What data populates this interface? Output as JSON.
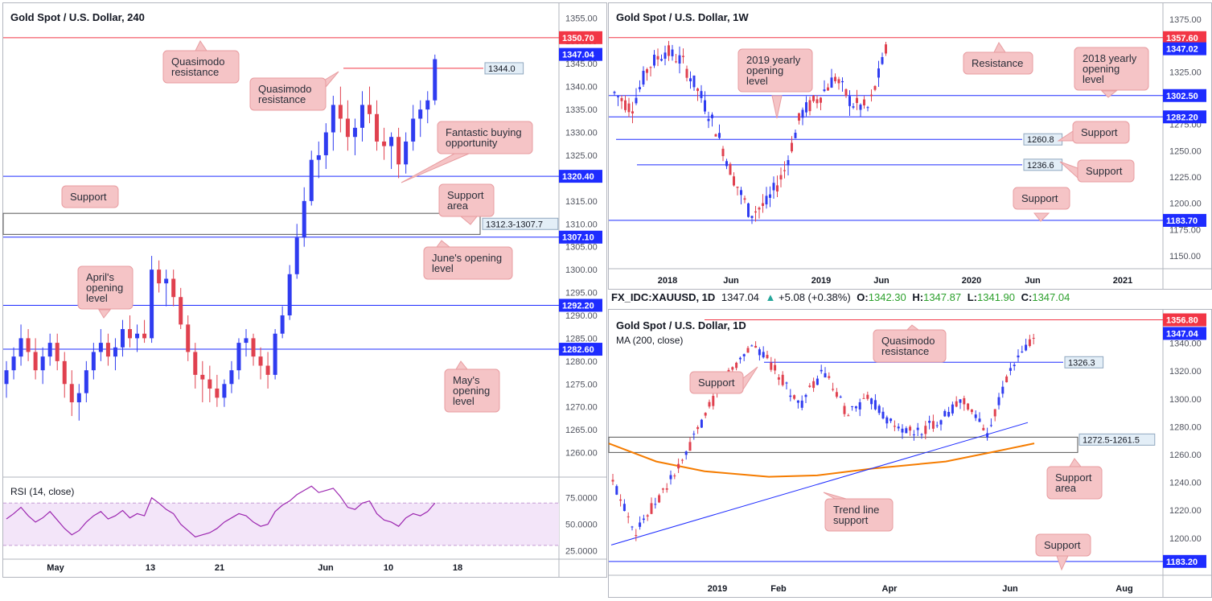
{
  "chart_data": [
    {
      "id": "h4",
      "type": "candlestick",
      "title": "Gold Spot / U.S. Dollar, 240",
      "ylim": [
        1255,
        1357
      ],
      "yticks": [
        1355,
        1350,
        1345,
        1340,
        1335,
        1330,
        1325,
        1320,
        1315,
        1310,
        1305,
        1300,
        1295,
        1290,
        1285,
        1280,
        1275,
        1270,
        1265,
        1260
      ],
      "xticks": [
        "May",
        "13",
        "21",
        "Jun",
        "10",
        "18"
      ],
      "ohlc": [
        [
          1275,
          1280,
          1272,
          1278
        ],
        [
          1278,
          1283,
          1276,
          1281
        ],
        [
          1281,
          1288,
          1279,
          1285
        ],
        [
          1285,
          1287,
          1280,
          1282
        ],
        [
          1282,
          1285,
          1276,
          1278
        ],
        [
          1278,
          1283,
          1275,
          1281
        ],
        [
          1281,
          1286,
          1279,
          1284
        ],
        [
          1284,
          1286,
          1278,
          1280
        ],
        [
          1280,
          1282,
          1272,
          1275
        ],
        [
          1275,
          1278,
          1268,
          1271
        ],
        [
          1271,
          1275,
          1267,
          1273
        ],
        [
          1273,
          1280,
          1271,
          1278
        ],
        [
          1278,
          1284,
          1276,
          1282
        ],
        [
          1282,
          1287,
          1280,
          1284
        ],
        [
          1284,
          1286,
          1279,
          1281
        ],
        [
          1281,
          1285,
          1278,
          1283
        ],
        [
          1283,
          1289,
          1281,
          1287
        ],
        [
          1287,
          1290,
          1283,
          1285
        ],
        [
          1285,
          1288,
          1282,
          1286
        ],
        [
          1286,
          1289,
          1284,
          1285
        ],
        [
          1285,
          1303,
          1284,
          1300
        ],
        [
          1300,
          1302,
          1295,
          1297
        ],
        [
          1297,
          1300,
          1292,
          1298
        ],
        [
          1298,
          1300,
          1292,
          1294
        ],
        [
          1294,
          1296,
          1287,
          1288
        ],
        [
          1288,
          1290,
          1280,
          1282
        ],
        [
          1282,
          1284,
          1274,
          1277
        ],
        [
          1277,
          1280,
          1271,
          1276
        ],
        [
          1276,
          1279,
          1271,
          1274
        ],
        [
          1274,
          1277,
          1270,
          1272
        ],
        [
          1272,
          1276,
          1270,
          1275
        ],
        [
          1275,
          1280,
          1273,
          1278
        ],
        [
          1278,
          1285,
          1276,
          1284
        ],
        [
          1284,
          1287,
          1281,
          1285
        ],
        [
          1285,
          1286,
          1279,
          1281
        ],
        [
          1281,
          1283,
          1276,
          1279
        ],
        [
          1279,
          1282,
          1274,
          1277
        ],
        [
          1277,
          1287,
          1276,
          1286
        ],
        [
          1286,
          1292,
          1285,
          1290
        ],
        [
          1290,
          1301,
          1289,
          1299
        ],
        [
          1299,
          1310,
          1298,
          1307
        ],
        [
          1307,
          1318,
          1305,
          1315
        ],
        [
          1315,
          1326,
          1314,
          1324
        ],
        [
          1324,
          1328,
          1320,
          1325
        ],
        [
          1325,
          1332,
          1322,
          1330
        ],
        [
          1330,
          1338,
          1326,
          1336
        ],
        [
          1336,
          1340,
          1330,
          1333
        ],
        [
          1333,
          1337,
          1326,
          1329
        ],
        [
          1329,
          1333,
          1325,
          1331
        ],
        [
          1331,
          1339,
          1328,
          1336
        ],
        [
          1336,
          1340,
          1332,
          1334
        ],
        [
          1334,
          1337,
          1326,
          1328
        ],
        [
          1328,
          1331,
          1324,
          1327
        ],
        [
          1327,
          1330,
          1322,
          1329
        ],
        [
          1329,
          1331,
          1320,
          1323
        ],
        [
          1323,
          1330,
          1321,
          1328
        ],
        [
          1328,
          1336,
          1326,
          1333
        ],
        [
          1333,
          1337,
          1329,
          1335
        ],
        [
          1335,
          1339,
          1332,
          1337
        ],
        [
          1337,
          1347,
          1336,
          1346
        ]
      ],
      "rsi": {
        "label": "RSI (14, close)",
        "ylim": [
          20,
          90
        ],
        "yticks": [
          75,
          50,
          25
        ],
        "ytick_labels": [
          "75.0000",
          "50.0000",
          "25.0000"
        ],
        "band": [
          70,
          30
        ],
        "values": [
          55,
          60,
          66,
          58,
          52,
          56,
          62,
          54,
          46,
          40,
          44,
          52,
          58,
          62,
          55,
          58,
          63,
          56,
          60,
          58,
          75,
          70,
          64,
          60,
          50,
          44,
          38,
          40,
          42,
          46,
          52,
          56,
          60,
          58,
          52,
          48,
          50,
          62,
          68,
          72,
          78,
          82,
          86,
          80,
          82,
          84,
          76,
          66,
          64,
          70,
          72,
          60,
          54,
          52,
          48,
          56,
          60,
          58,
          62,
          70
        ],
        "y_label_value": "75.0000"
      },
      "lines": [
        {
          "value": 1350.7,
          "label": "1350.70",
          "color": "#f23645"
        },
        {
          "value": 1347.04,
          "label": "1347.04",
          "color": "#1e2cff",
          "is_price": true
        },
        {
          "value": 1320.4,
          "label": "1320.40",
          "color": "#1e2cff"
        },
        {
          "value": 1307.1,
          "label": "1307.10",
          "color": "#1e2cff"
        },
        {
          "value": 1292.2,
          "label": "1292.20",
          "color": "#1e2cff"
        },
        {
          "value": 1282.6,
          "label": "1282.60",
          "color": "#1e2cff"
        }
      ],
      "segment_label": "1344.0",
      "zone_label": "1312.3-1307.7",
      "annotations": [
        "Quasimodo resistance",
        "Quasimodo resistance",
        "Fantastic buying opportunity",
        "Support",
        "Support area",
        "June's opening level",
        "April's opening level",
        "May's opening level"
      ]
    },
    {
      "id": "w1",
      "type": "candlestick",
      "title": "Gold Spot / U.S. Dollar, 1W",
      "ylim": [
        1140,
        1385
      ],
      "yticks": [
        1375,
        1350,
        1325,
        1300,
        1275,
        1250,
        1225,
        1200,
        1175,
        1150
      ],
      "xticks": [
        "2018",
        "Jun",
        "2019",
        "Jun",
        "2020",
        "Jun",
        "2021"
      ],
      "lines": [
        {
          "value": 1357.6,
          "label": "1357.60",
          "color": "#f23645"
        },
        {
          "value": 1347.02,
          "label": "1347.02",
          "color": "#1e2cff",
          "is_price": true
        },
        {
          "value": 1302.5,
          "label": "1302.50",
          "color": "#1e2cff"
        },
        {
          "value": 1282.2,
          "label": "1282.20",
          "color": "#1e2cff"
        },
        {
          "value": 1260.8,
          "label": "1260.8",
          "color": "#1e2cff",
          "segment": true
        },
        {
          "value": 1236.6,
          "label": "1236.6",
          "color": "#1e2cff",
          "segment": true
        },
        {
          "value": 1183.7,
          "label": "1183.70",
          "color": "#1e2cff"
        }
      ],
      "annotations": [
        "2019 yearly opening level",
        "Resistance",
        "2018 yearly opening level",
        "Support",
        "Support",
        "Support"
      ]
    },
    {
      "id": "d1",
      "type": "candlestick",
      "title": "Gold Spot / U.S. Dollar, 1D",
      "subtitle": "MA (200, close)",
      "ylim": [
        1175,
        1360
      ],
      "yticks": [
        1340,
        1320,
        1300,
        1280,
        1260,
        1240,
        1220,
        1200
      ],
      "xticks": [
        "2019",
        "Feb",
        "Apr",
        "Jun",
        "Aug"
      ],
      "lines": [
        {
          "value": 1356.8,
          "label": "1356.80",
          "color": "#f23645"
        },
        {
          "value": 1347.04,
          "label": "1347.04",
          "color": "#1e2cff",
          "is_price": true
        },
        {
          "value": 1326.3,
          "label": "1326.3",
          "color": "#1e2cff",
          "segment": true
        },
        {
          "value": 1183.2,
          "label": "1183.20",
          "color": "#1e2cff"
        }
      ],
      "zone_label": "1272.5-1261.5",
      "annotations": [
        "Quasimodo resistance",
        "Support",
        "Support area",
        "Trend line support",
        "Support"
      ]
    }
  ],
  "infobar": {
    "symbol": "FX_IDC:XAUUSD, 1D",
    "price": "1347.04",
    "change_arrow": "▲",
    "change": "+5.08 (+0.38%)",
    "o_label": "O:",
    "o": "1342.30",
    "h_label": "H:",
    "h": "1347.87",
    "l_label": "L:",
    "l": "1341.90",
    "c_label": "C:",
    "c": "1347.04"
  },
  "colors": {
    "bull": "#2f3cf0",
    "bear": "#e0414f",
    "resistance": "#f23645",
    "level": "#1e2cff",
    "callout_bg": "#f5c4c6",
    "callout_border": "#e89ca0",
    "ma": "#f57c00",
    "rsi": "#9c27b0"
  }
}
